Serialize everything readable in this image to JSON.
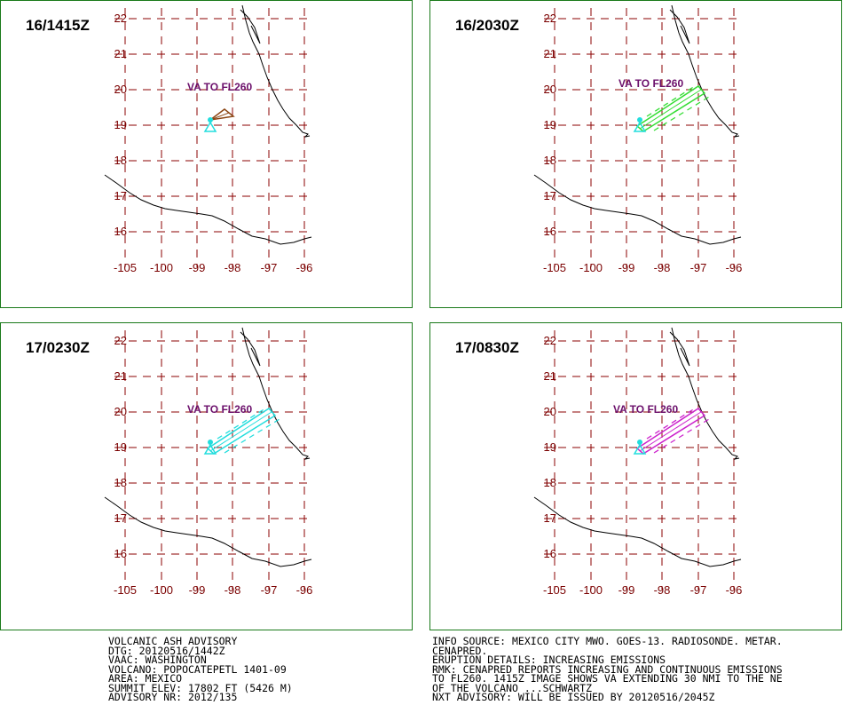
{
  "panels": [
    {
      "time": "16/1415Z",
      "label": "VA TO FL260",
      "color": "#8b4513",
      "shape": "fan"
    },
    {
      "time": "16/2030Z",
      "label": "VA TO FL260",
      "color": "#33dd33",
      "shape": "plume"
    },
    {
      "time": "17/0230Z",
      "label": "VA TO FL260",
      "color": "#22dddd",
      "shape": "plume"
    },
    {
      "time": "17/0830Z",
      "label": "VA TO FL260",
      "color": "#cc22cc",
      "shape": "plume"
    }
  ],
  "map": {
    "lat_labels": [
      "22",
      "21",
      "20",
      "19",
      "18",
      "17",
      "16"
    ],
    "lon_labels": [
      "-105",
      "-100",
      "-99",
      "-98",
      "-97",
      "-96"
    ],
    "grid_color": "#8b0000",
    "volcano_color": "#22dddd",
    "label_color": "#6b0f6b"
  },
  "advisory_left": [
    "VOLCANIC ASH ADVISORY",
    "DTG: 20120516/1442Z",
    "VAAC: WASHINGTON",
    "VOLCANO: POPOCATEPETL 1401-09",
    "AREA: MEXICO",
    "SUMMIT ELEV: 17802 FT (5426 M)",
    "ADVISORY NR: 2012/135"
  ],
  "advisory_right": [
    "INFO SOURCE: MEXICO CITY MWO. GOES-13. RADIOSONDE. METAR.",
    "CENAPRED.",
    "ERUPTION DETAILS: INCREASING EMISSIONS",
    "RMK: CENAPRED REPORTS INCREASING AND CONTINUOUS EMISSIONS",
    "TO FL260. 1415Z IMAGE SHOWS VA EXTENDING 30 NMI TO THE NE",
    "OF THE VOLCANO ...SCHWARTZ",
    "NXT ADVISORY: WILL BE ISSUED BY 20120516/2045Z"
  ]
}
